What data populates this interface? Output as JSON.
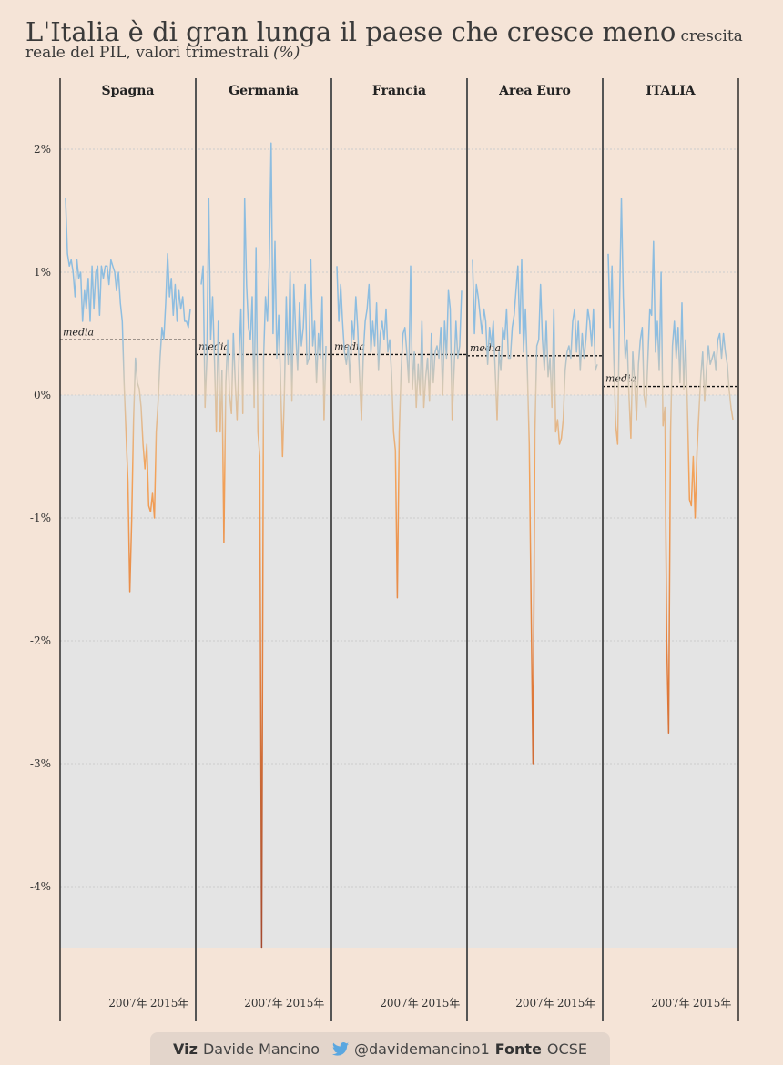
{
  "title": {
    "main": "L'Italia è di gran lunga il paese che cresce meno",
    "subtitle": "crescita reale del PIL, valori trimestrali",
    "unit": "(%)"
  },
  "chart_data": {
    "type": "line",
    "facets": [
      "Spagna",
      "Germania",
      "Francia",
      "Area Euro",
      "ITALIA"
    ],
    "ylim": [
      -4.5,
      2.5
    ],
    "yticks": [
      2,
      1,
      0,
      -1,
      -2,
      -3,
      -4
    ],
    "ytick_labels": [
      "2%",
      "1%",
      "0%",
      "-1%",
      "-2%",
      "-3%",
      "-4%"
    ],
    "xtick_labels": [
      "2007年",
      "2015年"
    ],
    "xrange": [
      1995,
      2019
    ],
    "mean_label": "media",
    "grid": true,
    "colors": {
      "positive": "#8dbde0",
      "zero": "#d8c8b0",
      "negative": "#f3a35a",
      "deep_negative": "#a0452d"
    },
    "series": [
      {
        "name": "Spagna",
        "mean": 0.45,
        "values": [
          1.6,
          1.15,
          1.05,
          1.1,
          1.0,
          0.8,
          1.1,
          0.95,
          1.0,
          0.6,
          0.85,
          0.7,
          0.95,
          0.6,
          1.05,
          0.7,
          1.0,
          1.05,
          0.65,
          1.05,
          0.95,
          1.05,
          1.05,
          0.9,
          1.1,
          1.05,
          1.0,
          0.85,
          1.0,
          0.75,
          0.6,
          0.1,
          -0.3,
          -0.7,
          -1.6,
          -1.0,
          -0.2,
          0.3,
          0.1,
          0.05,
          -0.1,
          -0.4,
          -0.6,
          -0.4,
          -0.9,
          -0.95,
          -0.8,
          -1.0,
          -0.3,
          -0.05,
          0.3,
          0.55,
          0.45,
          0.75,
          1.15,
          0.8,
          0.95,
          0.65,
          0.9,
          0.6,
          0.85,
          0.7,
          0.8,
          0.6,
          0.6,
          0.55,
          0.7
        ]
      },
      {
        "name": "Germania",
        "mean": 0.33,
        "values": [
          0.9,
          1.05,
          -0.1,
          0.3,
          1.6,
          0.45,
          0.8,
          0.3,
          -0.3,
          0.6,
          -0.3,
          0.2,
          -1.2,
          0.1,
          0.45,
          0.0,
          -0.15,
          0.5,
          0.1,
          -0.2,
          0.3,
          0.7,
          -0.15,
          1.6,
          0.9,
          0.55,
          0.45,
          0.8,
          -0.1,
          1.2,
          -0.3,
          -0.5,
          -4.5,
          0.3,
          0.8,
          0.6,
          1.05,
          2.05,
          0.5,
          1.25,
          0.3,
          0.65,
          0.1,
          -0.5,
          0.0,
          0.8,
          0.25,
          1.0,
          -0.05,
          0.9,
          0.5,
          0.2,
          0.75,
          0.4,
          0.55,
          0.9,
          0.25,
          0.3,
          1.1,
          0.4,
          0.6,
          0.1,
          0.5,
          0.3,
          0.8,
          -0.2,
          0.4
        ]
      },
      {
        "name": "Francia",
        "mean": 0.33,
        "values": [
          1.05,
          0.6,
          0.9,
          0.6,
          0.35,
          0.25,
          0.4,
          0.1,
          0.6,
          0.45,
          0.8,
          0.55,
          0.15,
          -0.2,
          0.35,
          0.6,
          0.7,
          0.9,
          0.35,
          0.6,
          0.4,
          0.75,
          0.2,
          0.5,
          0.6,
          0.45,
          0.7,
          0.35,
          0.45,
          0.15,
          -0.3,
          -0.45,
          -1.65,
          -0.3,
          0.2,
          0.5,
          0.55,
          0.35,
          0.1,
          1.05,
          0.05,
          0.35,
          -0.1,
          0.25,
          0.0,
          0.6,
          -0.1,
          0.15,
          0.3,
          -0.05,
          0.5,
          0.1,
          0.35,
          0.4,
          0.3,
          0.55,
          0.0,
          0.6,
          0.3,
          0.85,
          0.7,
          -0.2,
          0.2,
          0.6,
          0.3,
          0.4,
          0.85
        ]
      },
      {
        "name": "Area Euro",
        "mean": 0.32,
        "values": [
          1.1,
          0.5,
          0.9,
          0.8,
          0.65,
          0.5,
          0.7,
          0.6,
          0.25,
          0.55,
          0.4,
          0.6,
          0.2,
          -0.2,
          0.35,
          0.2,
          0.55,
          0.45,
          0.7,
          0.3,
          0.3,
          0.55,
          0.65,
          0.85,
          1.05,
          0.5,
          1.1,
          0.35,
          0.7,
          0.2,
          -0.4,
          -1.7,
          -3.0,
          -0.3,
          0.4,
          0.45,
          0.9,
          0.45,
          0.2,
          0.6,
          0.15,
          0.3,
          -0.1,
          0.7,
          -0.3,
          -0.2,
          -0.4,
          -0.35,
          -0.2,
          0.2,
          0.35,
          0.4,
          0.3,
          0.6,
          0.7,
          0.35,
          0.6,
          0.2,
          0.5,
          0.3,
          0.45,
          0.7,
          0.6,
          0.4,
          0.7,
          0.2,
          0.25
        ]
      },
      {
        "name": "ITALIA",
        "mean": 0.07,
        "values": [
          1.15,
          0.55,
          1.05,
          0.3,
          -0.25,
          -0.4,
          0.75,
          1.6,
          0.8,
          0.3,
          0.45,
          0.0,
          -0.35,
          0.35,
          0.1,
          -0.2,
          0.25,
          0.45,
          0.55,
          0.0,
          -0.1,
          0.3,
          0.7,
          0.65,
          1.25,
          0.35,
          0.6,
          0.2,
          1.0,
          -0.25,
          -0.1,
          -2.0,
          -2.75,
          -0.3,
          0.4,
          0.6,
          0.3,
          0.55,
          0.1,
          0.75,
          0.05,
          0.45,
          -0.15,
          -0.85,
          -0.9,
          -0.5,
          -1.0,
          -0.45,
          -0.15,
          0.15,
          0.35,
          -0.05,
          0.2,
          0.4,
          0.25,
          0.3,
          0.35,
          0.2,
          0.45,
          0.5,
          0.3,
          0.5,
          0.35,
          0.25,
          0.05,
          -0.1,
          -0.2
        ]
      }
    ]
  },
  "footer": {
    "viz_label": "Viz",
    "author": "Davide Mancino",
    "twitter_icon": "twitter-bird-icon",
    "twitter_handle": "@davidemancino1",
    "source_label": "Fonte",
    "source": "OCSE"
  }
}
